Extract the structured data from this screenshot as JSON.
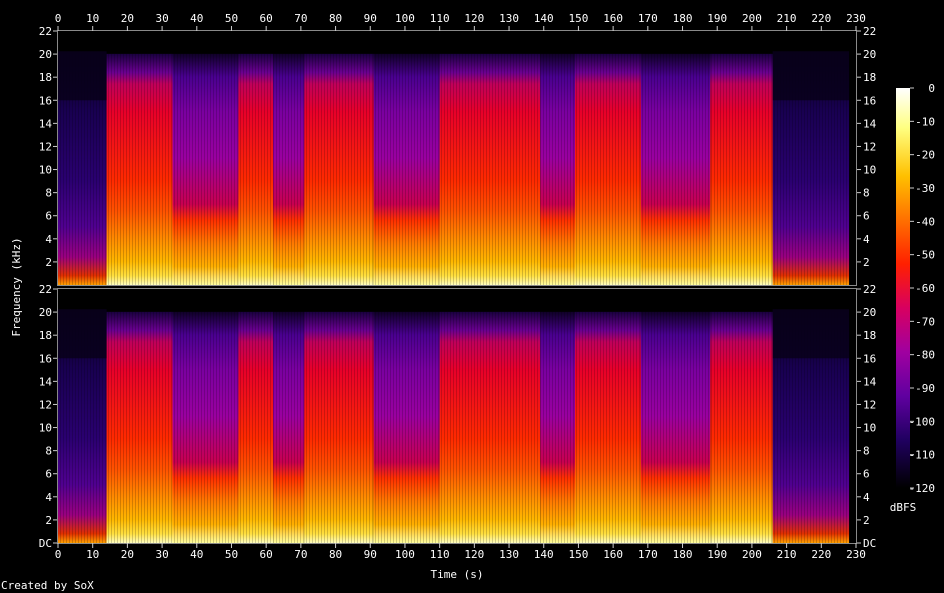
{
  "chart_data": {
    "type": "heatmap",
    "subtype": "spectrogram",
    "xlabel": "Time (s)",
    "ylabel": "Frequency (kHz)",
    "credit": "Created by SoX",
    "x_ticks": [
      0,
      10,
      20,
      30,
      40,
      50,
      60,
      70,
      80,
      90,
      100,
      110,
      120,
      130,
      140,
      150,
      160,
      170,
      180,
      190,
      200,
      210,
      220,
      230
    ],
    "xlim": [
      0,
      230
    ],
    "duration_s": 228,
    "y_ticks_top": [
      "22",
      "20",
      "18",
      "16",
      "14",
      "12",
      "10",
      "8",
      "6",
      "4",
      "2"
    ],
    "y_ticks_bottom": [
      "22",
      "20",
      "18",
      "16",
      "14",
      "12",
      "10",
      "8",
      "6",
      "4",
      "2",
      "DC"
    ],
    "ylim_khz": [
      0,
      22
    ],
    "channels": [
      "channel-1",
      "channel-2"
    ],
    "colorbar": {
      "unit": "dBFS",
      "ticks": [
        0,
        -10,
        -20,
        -30,
        -40,
        -50,
        -60,
        -70,
        -80,
        -90,
        -100,
        -110,
        -120
      ],
      "range": [
        -120,
        0
      ],
      "colors": [
        "#000000",
        "#100030",
        "#300070",
        "#6000a0",
        "#a000a0",
        "#e00050",
        "#ff2000",
        "#ff6000",
        "#ffa000",
        "#ffe000",
        "#ffffa0",
        "#ffffff"
      ]
    },
    "segments": [
      {
        "start": 0,
        "end": 14,
        "level": "quiet-intro"
      },
      {
        "start": 14,
        "end": 33,
        "level": "loud"
      },
      {
        "start": 33,
        "end": 52,
        "level": "medium"
      },
      {
        "start": 52,
        "end": 62,
        "level": "loud"
      },
      {
        "start": 62,
        "end": 71,
        "level": "medium"
      },
      {
        "start": 71,
        "end": 91,
        "level": "loud"
      },
      {
        "start": 91,
        "end": 110,
        "level": "medium"
      },
      {
        "start": 110,
        "end": 139,
        "level": "loud"
      },
      {
        "start": 139,
        "end": 149,
        "level": "medium"
      },
      {
        "start": 149,
        "end": 168,
        "level": "loud"
      },
      {
        "start": 168,
        "end": 188,
        "level": "medium"
      },
      {
        "start": 188,
        "end": 206,
        "level": "loud"
      },
      {
        "start": 206,
        "end": 228,
        "level": "quiet-outro"
      }
    ],
    "grid": false
  }
}
